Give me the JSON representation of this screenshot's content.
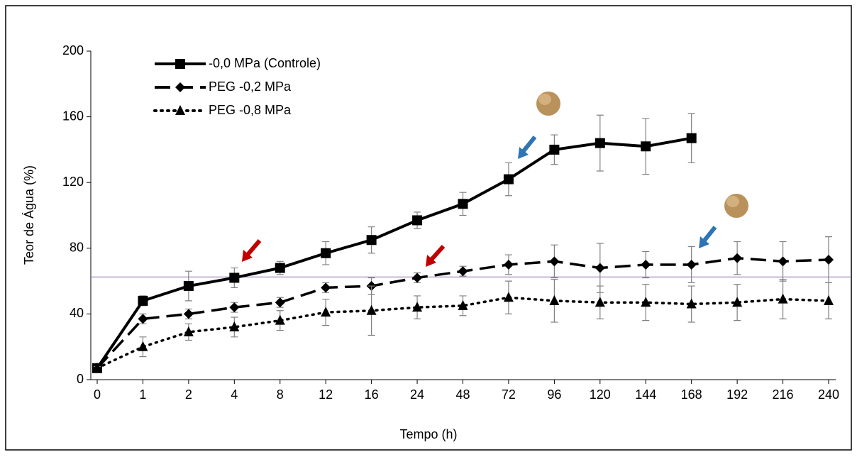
{
  "chart_data": {
    "type": "line",
    "x_label": "Tempo (h)",
    "y_label": "Teor de Água (%)",
    "categories": [
      "0",
      "1",
      "2",
      "4",
      "8",
      "12",
      "16",
      "24",
      "48",
      "72",
      "96",
      "120",
      "144",
      "168",
      "192",
      "216",
      "240"
    ],
    "series": [
      {
        "name": "-0,0 MPa (Controle)",
        "color": "#000000",
        "marker": "square",
        "dash": "solid",
        "values": [
          7,
          48,
          57,
          62,
          68,
          77,
          85,
          97,
          107,
          122,
          140,
          144,
          142,
          147,
          null,
          null,
          null
        ],
        "errors": [
          1,
          3,
          9,
          6,
          4,
          7,
          8,
          5,
          7,
          10,
          9,
          17,
          17,
          15,
          null,
          null,
          null
        ]
      },
      {
        "name": "PEG -0,2 MPa",
        "color": "#000000",
        "marker": "diamond",
        "dash": "dashed",
        "values": [
          7,
          37,
          40,
          44,
          47,
          56,
          57,
          62,
          66,
          70,
          72,
          68,
          70,
          70,
          74,
          72,
          73
        ],
        "errors": [
          1,
          3,
          3,
          3,
          3,
          3,
          5,
          3,
          3,
          6,
          10,
          15,
          8,
          11,
          10,
          12,
          14
        ]
      },
      {
        "name": "PEG -0,8 MPa",
        "color": "#000000",
        "marker": "triangle",
        "dash": "dotted",
        "values": [
          7,
          20,
          29,
          32,
          36,
          41,
          42,
          44,
          45,
          50,
          48,
          47,
          47,
          46,
          47,
          49,
          48
        ],
        "errors": [
          1,
          6,
          5,
          6,
          6,
          8,
          15,
          7,
          6,
          10,
          13,
          10,
          11,
          11,
          11,
          12,
          11
        ]
      }
    ],
    "reference_line": {
      "value": 62.5,
      "color": "#9b7fb8"
    },
    "ylim": [
      0,
      200
    ],
    "yticks": [
      0,
      40,
      80,
      120,
      160,
      200
    ],
    "error_color": "#808080"
  }
}
